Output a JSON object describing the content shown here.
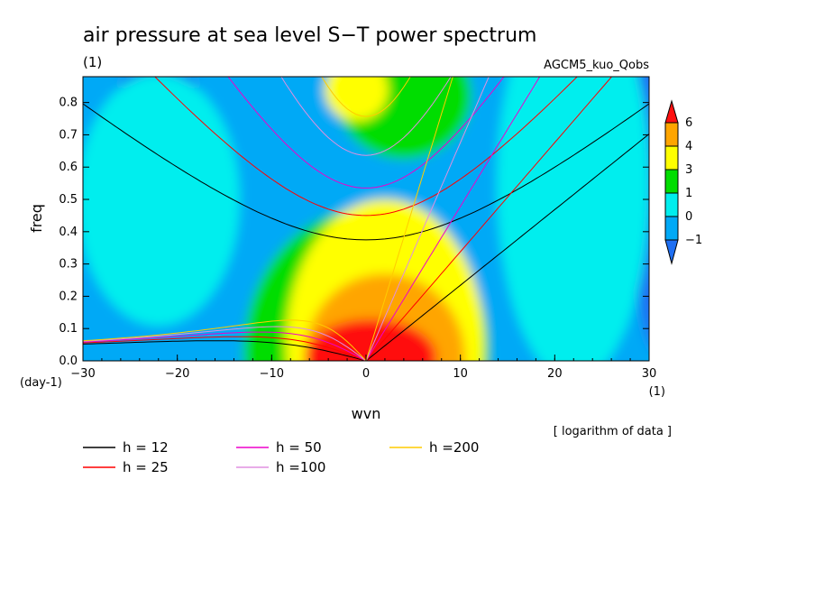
{
  "chart_data": {
    "type": "heatmap",
    "title": "air pressure at sea level S−T power spectrum",
    "subtitle": "(1)",
    "source_label": "AGCM5_kuo_Qobs",
    "xlabel": "wvn",
    "xunits": "(1)",
    "ylabel": "freq",
    "yunits": "(day-1)",
    "note": "[ logarithm of data ]",
    "xlim": [
      -30,
      30
    ],
    "ylim": [
      0,
      0.88
    ],
    "xticks": [
      -30,
      -20,
      -10,
      0,
      10,
      20,
      30
    ],
    "xtick_labels": [
      "−30",
      "−20",
      "−10",
      "0",
      "10",
      "20",
      "30"
    ],
    "yticks": [
      0,
      0.1,
      0.2,
      0.3,
      0.4,
      0.5,
      0.6,
      0.7,
      0.8
    ],
    "ytick_labels": [
      "0.0",
      "0.1",
      "0.2",
      "0.3",
      "0.4",
      "0.5",
      "0.6",
      "0.7",
      "0.8"
    ],
    "colorbar": {
      "levels": [
        -1,
        0,
        1,
        3,
        4,
        6
      ],
      "level_labels": [
        "−1",
        "0",
        "1",
        "3",
        "4",
        "6"
      ],
      "colors": [
        "#1f6ff2",
        "#00a9f6",
        "#00eeee",
        "#00dd00",
        "#ffff00",
        "#ffa500",
        "#ff1010"
      ]
    },
    "contour_fill": [
      {
        "level": 1,
        "cx": 0,
        "cy": 0.02,
        "rx": 13,
        "ry": 0.45
      },
      {
        "level": 3,
        "cx": 2,
        "cy": 0.05,
        "rx": 10.5,
        "ry": 0.45
      },
      {
        "level": 4,
        "cx": 2,
        "cy": 0.01,
        "rx": 8.5,
        "ry": 0.26
      },
      {
        "level": 6,
        "cx": 0.5,
        "cy": 0.01,
        "rx": 7,
        "ry": 0.12
      }
    ],
    "dispersion_curves": [
      {
        "name": "h = 12",
        "h": 12,
        "color": "#000000"
      },
      {
        "name": "h = 25",
        "h": 25,
        "color": "#ff0000"
      },
      {
        "name": "h = 50",
        "h": 50,
        "color": "#ee00cc"
      },
      {
        "name": "h =100",
        "h": 100,
        "color": "#e090e0"
      },
      {
        "name": "h =200",
        "h": 200,
        "color": "#ffcc00"
      }
    ]
  }
}
